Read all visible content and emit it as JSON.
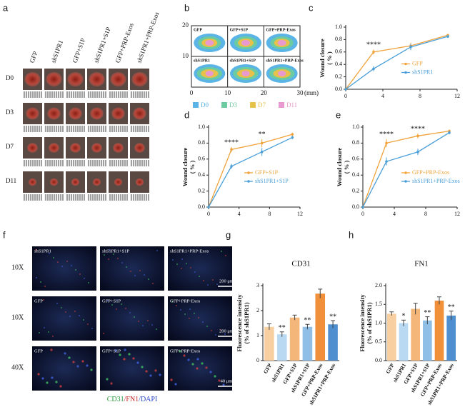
{
  "panel_labels": [
    "a",
    "b",
    "c",
    "d",
    "e",
    "f",
    "g",
    "h"
  ],
  "panel_a": {
    "columns": [
      "GFP",
      "shS1PR1",
      "GFP+S1P",
      "shS1PR1+S1P",
      "GFP+PRP-Exos",
      "shS1PR1+PRP-Exos"
    ],
    "rows": [
      "D0",
      "D3",
      "D7",
      "D11"
    ]
  },
  "panel_b": {
    "groups": [
      "GFP",
      "GFP+S1P",
      "GFP+PRP-Exos",
      "shS1PR1",
      "shS1PR1+S1P",
      "shS1PR1+PRP-Exos"
    ],
    "xticks": [
      "0",
      "10",
      "20",
      "30"
    ],
    "x_unit": "(mm)",
    "yticks": [
      "10",
      "20"
    ],
    "legend": [
      "D0",
      "D3",
      "D7",
      "D11"
    ]
  },
  "panel_f": {
    "labels": [
      [
        "shS1PR1",
        "shS1PR1+S1P",
        "shS1PR1+PRP-Exos"
      ],
      [
        "GFP",
        "GFP+S1P",
        "GFP+PRP-Exos"
      ],
      [
        "GFP",
        "GFP+S1P",
        "GFP+PRP-Exos"
      ]
    ],
    "rows": [
      "10X",
      "10X",
      "40X"
    ],
    "scale_bars": [
      "200 μm",
      "200 μm",
      "40 μm"
    ],
    "stain": [
      "CD31",
      "/FN1",
      "/DAPI"
    ]
  },
  "chart_data": [
    {
      "type": "line",
      "y_label": [
        "Wound closure",
        "( % )"
      ],
      "x": [
        0,
        3,
        7,
        11
      ],
      "xlim": [
        0,
        12
      ],
      "xticks": [
        0,
        4,
        8,
        12
      ],
      "ylim": [
        0,
        1
      ],
      "yticks": [
        {
          "value": 0,
          "label": "0.0"
        },
        {
          "value": 0.2,
          "label": "0.2"
        },
        {
          "value": 0.4,
          "label": "0.4"
        },
        {
          "value": 0.6,
          "label": "0.6"
        },
        {
          "value": 0.8,
          "label": "0.8"
        },
        {
          "value": 1,
          "label": "1.0"
        }
      ],
      "series": [
        {
          "name": "GFP",
          "color": "#f0a33c",
          "values": [
            0,
            0.6,
            0.7,
            0.87
          ],
          "errors": [
            0,
            0.04,
            0.05,
            0.02
          ]
        },
        {
          "name": "shS1PR1",
          "color": "#4a9fd8",
          "values": [
            0,
            0.33,
            0.68,
            0.85
          ],
          "errors": [
            0,
            0.04,
            0.05,
            0.02
          ]
        }
      ],
      "annotations": [
        {
          "x": 3,
          "text": "****"
        }
      ],
      "legend": "right"
    },
    {
      "type": "line",
      "y_label": [
        "Wound closure",
        "( % )"
      ],
      "x": [
        0,
        3,
        7,
        11
      ],
      "xlim": [
        0,
        12
      ],
      "xticks": [
        0,
        4,
        8,
        12
      ],
      "ylim": [
        0,
        1
      ],
      "yticks": [
        {
          "value": 0,
          "label": "0.0"
        },
        {
          "value": 0.2,
          "label": "0.2"
        },
        {
          "value": 0.4,
          "label": "0.4"
        },
        {
          "value": 0.6,
          "label": "0.6"
        },
        {
          "value": 0.8,
          "label": "0.8"
        },
        {
          "value": 1,
          "label": "1.0"
        }
      ],
      "series": [
        {
          "name": "GFP+S1P",
          "color": "#f0a33c",
          "values": [
            0,
            0.72,
            0.8,
            0.91
          ],
          "errors": [
            0,
            0.03,
            0.05,
            0.02
          ]
        },
        {
          "name": "shS1PR1+S1P",
          "color": "#4a9fd8",
          "values": [
            0,
            0.51,
            0.69,
            0.87
          ],
          "errors": [
            0,
            0.03,
            0.05,
            0.02
          ]
        }
      ],
      "annotations": [
        {
          "x": 3,
          "text": "****"
        },
        {
          "x": 7,
          "text": "**"
        }
      ],
      "legend": "right"
    },
    {
      "type": "line",
      "y_label": [
        "Wound closure",
        "( % )"
      ],
      "x": [
        0,
        3,
        7,
        11
      ],
      "xlim": [
        0,
        12
      ],
      "xticks": [
        0,
        4,
        8,
        12
      ],
      "ylim": [
        0,
        1
      ],
      "yticks": [
        {
          "value": 0,
          "label": "0.0"
        },
        {
          "value": 0.2,
          "label": "0.2"
        },
        {
          "value": 0.4,
          "label": "0.4"
        },
        {
          "value": 0.6,
          "label": "0.6"
        },
        {
          "value": 0.8,
          "label": "0.8"
        },
        {
          "value": 1,
          "label": "1.0"
        }
      ],
      "series": [
        {
          "name": "GFP+PRP-Exos",
          "color": "#f0a33c",
          "values": [
            0,
            0.8,
            0.89,
            0.95
          ],
          "errors": [
            0,
            0.05,
            0.03,
            0.02
          ]
        },
        {
          "name": "shS1PR1+PRP-Exos",
          "color": "#4a9fd8",
          "values": [
            0,
            0.57,
            0.69,
            0.93
          ],
          "errors": [
            0,
            0.05,
            0.04,
            0.02
          ]
        }
      ],
      "annotations": [
        {
          "x": 3,
          "text": "****"
        },
        {
          "x": 7,
          "text": "****"
        }
      ],
      "legend": "right"
    },
    {
      "type": "bar",
      "title": "CD31",
      "y_label": [
        "Fluorescence intensity",
        "(% of shS1PR1)"
      ],
      "categories": [
        "GFP",
        "shS1PR1",
        "GFP+S1P",
        "shS1PR1+S1P",
        "GFP+PRP-Exos",
        "shS1PR1+PRP-Exos"
      ],
      "values": [
        1.35,
        1.05,
        1.72,
        1.35,
        2.68,
        1.45
      ],
      "errors": [
        0.12,
        0.1,
        0.1,
        0.1,
        0.18,
        0.15
      ],
      "colors": [
        "#f8cfa0",
        "#b9d8f2",
        "#f5b67a",
        "#8fbfe6",
        "#f0903a",
        "#4f8fd0"
      ],
      "ylim": [
        0,
        3
      ],
      "yticks": [
        0,
        1,
        2,
        3
      ],
      "annotations": [
        {
          "index": 1,
          "text": "**"
        },
        {
          "index": 3,
          "text": "**"
        },
        {
          "index": 5,
          "text": "**"
        }
      ]
    },
    {
      "type": "bar",
      "title": "FN1",
      "y_label": [
        "Fluorescence intensity",
        "(% of shS1PR1)"
      ],
      "categories": [
        "GFP",
        "shS1PR1",
        "GFP+S1P",
        "shS1PR1+S1P",
        "GFP+PRP-Exos",
        "shS1PR1+PRP-Exos"
      ],
      "values": [
        1.25,
        1.0,
        1.38,
        1.07,
        1.6,
        1.2
      ],
      "errors": [
        0.05,
        0.08,
        0.15,
        0.1,
        0.1,
        0.12
      ],
      "colors": [
        "#f8cfa0",
        "#b9d8f2",
        "#f5b67a",
        "#8fbfe6",
        "#f0903a",
        "#4f8fd0"
      ],
      "ylim": [
        0,
        2
      ],
      "yticks": [
        {
          "value": 0,
          "label": "0.0"
        },
        {
          "value": 0.5,
          "label": "0.5"
        },
        {
          "value": 1,
          "label": "1.0"
        },
        {
          "value": 1.5,
          "label": "1.5"
        },
        {
          "value": 2,
          "label": "2.0"
        }
      ],
      "annotations": [
        {
          "index": 1,
          "text": "*"
        },
        {
          "index": 3,
          "text": "**"
        },
        {
          "index": 5,
          "text": "**"
        }
      ]
    }
  ]
}
